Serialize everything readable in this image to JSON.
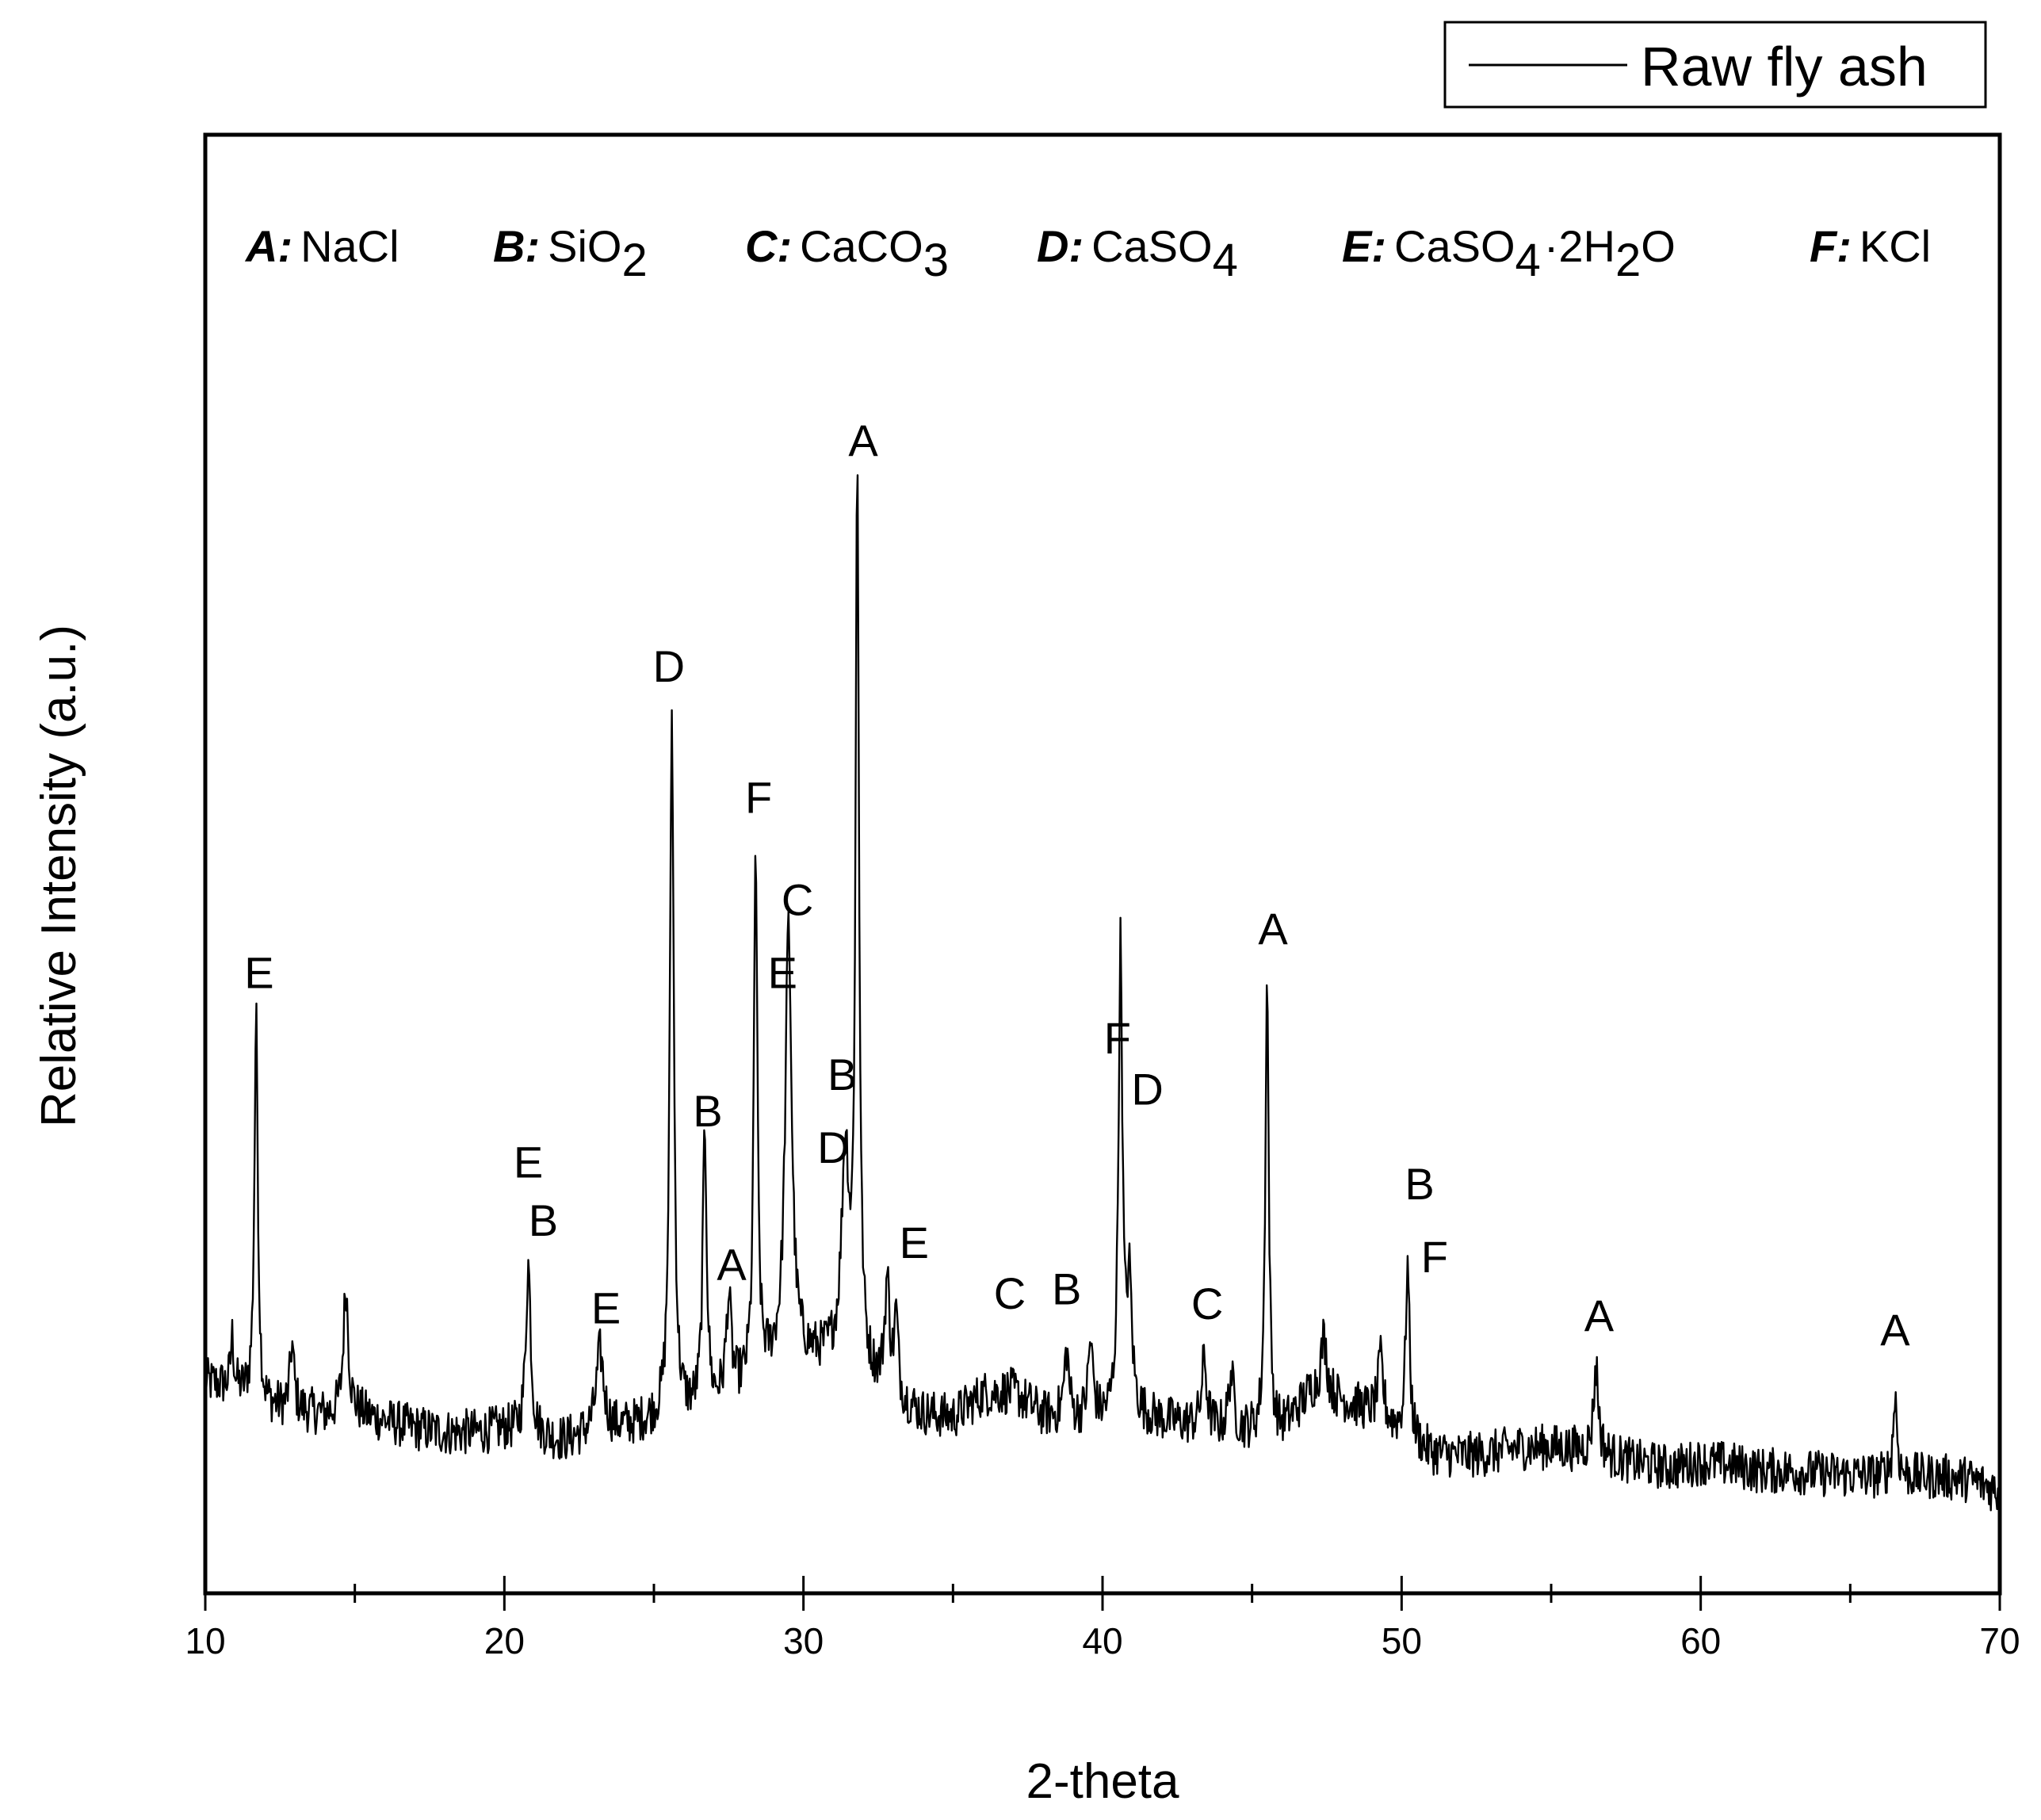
{
  "chart_data": {
    "type": "line",
    "xlabel": "2-theta",
    "ylabel": "Relative Intensity (a.u.)",
    "xlim": [
      10,
      70
    ],
    "ylim": [
      0,
      1000
    ],
    "x_ticks": [
      "10",
      "20",
      "30",
      "40",
      "50",
      "60",
      "70"
    ],
    "y_ticks_shown": false,
    "grid": false,
    "legend": {
      "position": "top-right",
      "entries": [
        "Raw fly ash"
      ]
    },
    "series": [
      {
        "name": "Raw fly ash",
        "color": "#000000",
        "baseline_points": [
          [
            10,
            145
          ],
          [
            11,
            140
          ],
          [
            12,
            128
          ],
          [
            13,
            126
          ],
          [
            14,
            122
          ],
          [
            15,
            124
          ],
          [
            16,
            118
          ],
          [
            17,
            113
          ],
          [
            18,
            110
          ],
          [
            19,
            110
          ],
          [
            20,
            112
          ],
          [
            21,
            108
          ],
          [
            22,
            104
          ],
          [
            23,
            110
          ],
          [
            24,
            113
          ],
          [
            25,
            118
          ],
          [
            26,
            122
          ],
          [
            27,
            128
          ],
          [
            28,
            140
          ],
          [
            29,
            155
          ],
          [
            30,
            160
          ],
          [
            31,
            160
          ],
          [
            32,
            150
          ],
          [
            33,
            132
          ],
          [
            34,
            122
          ],
          [
            35,
            120
          ],
          [
            36,
            136
          ],
          [
            37,
            138
          ],
          [
            38,
            122
          ],
          [
            39,
            118
          ],
          [
            40,
            118
          ],
          [
            41,
            122
          ],
          [
            42,
            118
          ],
          [
            43,
            115
          ],
          [
            44,
            112
          ],
          [
            45,
            110
          ],
          [
            46,
            112
          ],
          [
            47,
            138
          ],
          [
            48,
            132
          ],
          [
            49,
            124
          ],
          [
            50,
            110
          ],
          [
            51,
            96
          ],
          [
            52,
            94
          ],
          [
            53,
            96
          ],
          [
            54,
            100
          ],
          [
            55,
            100
          ],
          [
            56,
            98
          ],
          [
            57,
            93
          ],
          [
            58,
            89
          ],
          [
            59,
            86
          ],
          [
            60,
            90
          ],
          [
            61,
            88
          ],
          [
            62,
            84
          ],
          [
            63,
            84
          ],
          [
            64,
            82
          ],
          [
            65,
            81
          ],
          [
            66,
            80
          ],
          [
            67,
            80
          ],
          [
            68,
            80
          ],
          [
            69,
            78
          ],
          [
            70,
            70
          ]
        ],
        "peaks": [
          {
            "two_theta": 10.9,
            "intensity": 175,
            "width": 0.06
          },
          {
            "two_theta": 11.7,
            "intensity": 395,
            "width": 0.07
          },
          {
            "two_theta": 12.9,
            "intensity": 170,
            "width": 0.08
          },
          {
            "two_theta": 14.7,
            "intensity": 210,
            "width": 0.1
          },
          {
            "two_theta": 20.8,
            "intensity": 225,
            "width": 0.1
          },
          {
            "two_theta": 23.2,
            "intensity": 165,
            "width": 0.15
          },
          {
            "two_theta": 25.6,
            "intensity": 600,
            "width": 0.08
          },
          {
            "two_theta": 26.7,
            "intensity": 315,
            "width": 0.08
          },
          {
            "two_theta": 27.5,
            "intensity": 200,
            "width": 0.1
          },
          {
            "two_theta": 28.4,
            "intensity": 510,
            "width": 0.07
          },
          {
            "two_theta": 29.5,
            "intensity": 455,
            "width": 0.13
          },
          {
            "two_theta": 31.4,
            "intensity": 300,
            "width": 0.15
          },
          {
            "two_theta": 31.8,
            "intensity": 760,
            "width": 0.07
          },
          {
            "two_theta": 32.8,
            "intensity": 210,
            "width": 0.1
          },
          {
            "two_theta": 33.1,
            "intensity": 185,
            "width": 0.08
          },
          {
            "two_theta": 38.8,
            "intensity": 165,
            "width": 0.1
          },
          {
            "two_theta": 39.6,
            "intensity": 170,
            "width": 0.1
          },
          {
            "two_theta": 40.6,
            "intensity": 440,
            "width": 0.08
          },
          {
            "two_theta": 40.9,
            "intensity": 205,
            "width": 0.1
          },
          {
            "two_theta": 43.4,
            "intensity": 160,
            "width": 0.1
          },
          {
            "two_theta": 44.3,
            "intensity": 150,
            "width": 0.1
          },
          {
            "two_theta": 45.5,
            "intensity": 420,
            "width": 0.07
          },
          {
            "two_theta": 47.4,
            "intensity": 175,
            "width": 0.12
          },
          {
            "two_theta": 49.3,
            "intensity": 160,
            "width": 0.1
          },
          {
            "two_theta": 50.2,
            "intensity": 225,
            "width": 0.08
          },
          {
            "two_theta": 56.5,
            "intensity": 155,
            "width": 0.1
          },
          {
            "two_theta": 66.5,
            "intensity": 135,
            "width": 0.08
          }
        ],
        "noise_amplitude": 16
      }
    ],
    "peak_labels": [
      {
        "text": "E",
        "two_theta": 11.8,
        "intensity": 415
      },
      {
        "text": "E",
        "two_theta": 20.8,
        "intensity": 285
      },
      {
        "text": "B",
        "two_theta": 21.3,
        "intensity": 245
      },
      {
        "text": "E",
        "two_theta": 23.4,
        "intensity": 185
      },
      {
        "text": "D",
        "two_theta": 25.5,
        "intensity": 625
      },
      {
        "text": "B",
        "two_theta": 26.8,
        "intensity": 320
      },
      {
        "text": "A",
        "two_theta": 27.6,
        "intensity": 215
      },
      {
        "text": "F",
        "two_theta": 28.5,
        "intensity": 535
      },
      {
        "text": "C",
        "two_theta": 29.8,
        "intensity": 465
      },
      {
        "text": "E",
        "two_theta": 29.3,
        "intensity": 415
      },
      {
        "text": "B",
        "two_theta": 31.3,
        "intensity": 345
      },
      {
        "text": "D",
        "two_theta": 31.0,
        "intensity": 295
      },
      {
        "text": "A",
        "two_theta": 32.0,
        "intensity": 780
      },
      {
        "text": "E",
        "two_theta": 33.7,
        "intensity": 230
      },
      {
        "text": "C",
        "two_theta": 36.9,
        "intensity": 195
      },
      {
        "text": "B",
        "two_theta": 38.8,
        "intensity": 198
      },
      {
        "text": "F",
        "two_theta": 40.5,
        "intensity": 370
      },
      {
        "text": "D",
        "two_theta": 41.5,
        "intensity": 335
      },
      {
        "text": "C",
        "two_theta": 43.5,
        "intensity": 188
      },
      {
        "text": "A",
        "two_theta": 45.7,
        "intensity": 445
      },
      {
        "text": "B",
        "two_theta": 50.6,
        "intensity": 270
      },
      {
        "text": "F",
        "two_theta": 51.1,
        "intensity": 220
      },
      {
        "text": "A",
        "two_theta": 56.6,
        "intensity": 180
      },
      {
        "text": "A",
        "two_theta": 66.5,
        "intensity": 170
      }
    ],
    "phase_key": [
      {
        "code": "A:",
        "formula": "NaCl"
      },
      {
        "code": "B:",
        "formula": "SiO",
        "sub": "2"
      },
      {
        "code": "C:",
        "formula": "CaCO",
        "sub": "3"
      },
      {
        "code": "D:",
        "formula": "CaSO",
        "sub": "4"
      },
      {
        "code": "E:",
        "formula": "CaSO",
        "sub": "4",
        "tail": "·2H",
        "sub2": "2",
        "tail2": "O"
      },
      {
        "code": "F:",
        "formula": "KCl"
      }
    ]
  }
}
